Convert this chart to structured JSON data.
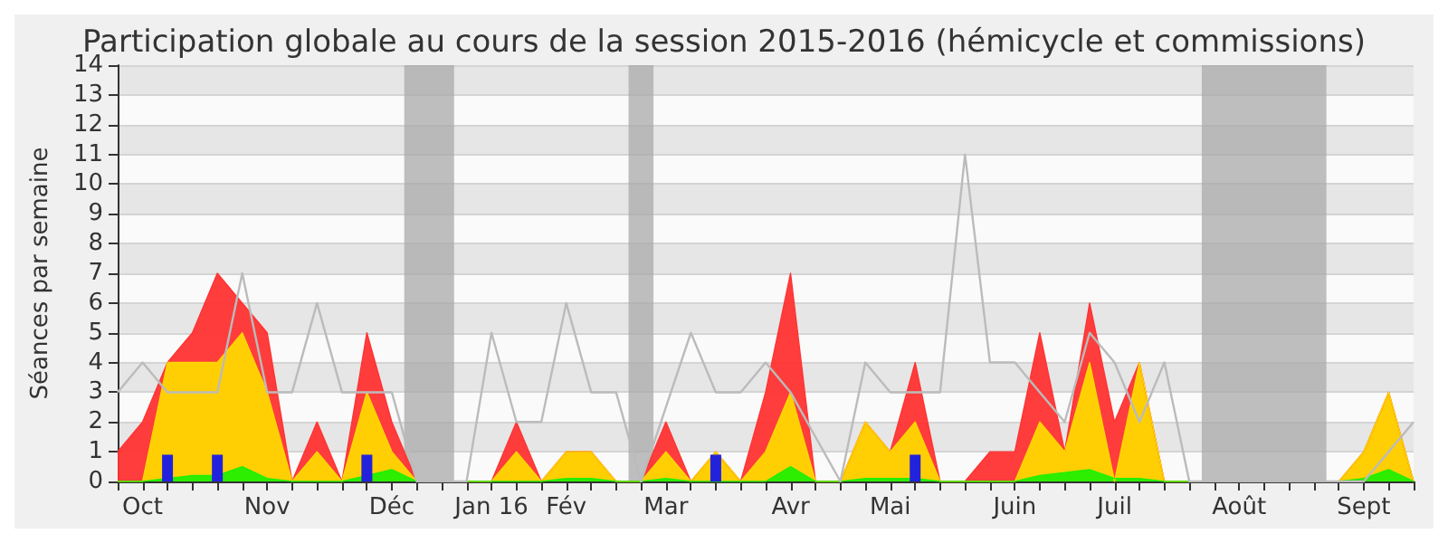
{
  "chart_data": {
    "type": "area",
    "title": "Participation globale au cours de la session 2015-2016 (hémicycle et commissions)",
    "ylabel": "Séances par semaine",
    "x": [
      "2015-10-05",
      "2015-10-12",
      "2015-10-19",
      "2015-10-26",
      "2015-11-02",
      "2015-11-09",
      "2015-11-16",
      "2015-11-23",
      "2015-11-30",
      "2015-12-07",
      "2015-12-14",
      "2015-12-21",
      "2015-12-28",
      "2016-01-04",
      "2016-01-11",
      "2016-01-18",
      "2016-01-25",
      "2016-02-01",
      "2016-02-08",
      "2016-02-15",
      "2016-02-22",
      "2016-02-29",
      "2016-03-07",
      "2016-03-14",
      "2016-03-21",
      "2016-03-28",
      "2016-04-04",
      "2016-04-11",
      "2016-04-18",
      "2016-04-25",
      "2016-05-02",
      "2016-05-09",
      "2016-05-16",
      "2016-05-23",
      "2016-05-30",
      "2016-06-06",
      "2016-06-13",
      "2016-06-20",
      "2016-06-27",
      "2016-07-04",
      "2016-07-11",
      "2016-07-18",
      "2016-07-25",
      "2016-08-01",
      "2016-08-08",
      "2016-08-15",
      "2016-08-22",
      "2016-08-29",
      "2016-09-05",
      "2016-09-12",
      "2016-09-19",
      "2016-09-26",
      "2016-10-03"
    ],
    "series": [
      {
        "color": "#ff3333",
        "values": [
          1,
          2,
          4,
          5,
          7,
          6,
          5,
          0,
          2,
          0,
          5,
          2,
          0,
          0,
          0,
          0,
          2,
          0,
          1,
          1,
          0,
          0,
          2,
          0,
          1,
          0,
          3,
          7,
          0,
          0,
          2,
          1,
          4,
          0,
          0,
          1,
          1,
          5,
          1,
          6,
          2,
          4,
          0,
          0,
          0,
          0,
          0,
          0,
          0,
          0,
          1,
          3,
          0
        ]
      },
      {
        "color": "#ffd700",
        "values": [
          0,
          0,
          4,
          4,
          4,
          5,
          3,
          0,
          1,
          0,
          3,
          1,
          0,
          0,
          0,
          0,
          1,
          0,
          1,
          1,
          0,
          0,
          1,
          0,
          1,
          0,
          1,
          3,
          0,
          0,
          2,
          1,
          2,
          0,
          0,
          0,
          0,
          2,
          1,
          4,
          0,
          4,
          0,
          0,
          0,
          0,
          0,
          0,
          0,
          0,
          1,
          3,
          0
        ]
      },
      {
        "color": "#22ee00",
        "values": [
          0,
          0,
          0.1,
          0.2,
          0.2,
          0.5,
          0.1,
          0,
          0,
          0,
          0.2,
          0.4,
          0,
          0,
          0,
          0,
          0,
          0,
          0.1,
          0.1,
          0,
          0,
          0.1,
          0,
          0,
          0,
          0,
          0.5,
          0,
          0,
          0.1,
          0.1,
          0.1,
          0,
          0,
          0,
          0,
          0.2,
          0.3,
          0.4,
          0.1,
          0.1,
          0,
          0,
          0,
          0,
          0,
          0,
          0,
          0,
          0.1,
          0.4,
          0
        ]
      },
      {
        "type": "bar",
        "color": "#2222dd",
        "values": [
          null,
          null,
          0.9,
          null,
          0.9,
          null,
          null,
          null,
          null,
          null,
          0.9,
          null,
          null,
          null,
          null,
          null,
          null,
          null,
          null,
          null,
          null,
          null,
          null,
          null,
          0.9,
          null,
          null,
          null,
          null,
          null,
          null,
          null,
          0.9,
          null,
          null,
          null,
          null,
          null,
          null,
          null,
          null,
          null,
          null,
          null,
          null,
          null,
          null,
          null,
          null,
          null,
          null,
          null,
          null
        ]
      },
      {
        "type": "line",
        "color": "#bbbbbb",
        "values": [
          3,
          4,
          3,
          3,
          3,
          7,
          3,
          3,
          6,
          3,
          3,
          3,
          0,
          0,
          0,
          5,
          2,
          2,
          6,
          3,
          3,
          0,
          2.5,
          5,
          3,
          3,
          4,
          3,
          1.5,
          0,
          4,
          3,
          3,
          3,
          11,
          4,
          4,
          3,
          2,
          5,
          4,
          2,
          4,
          0,
          0,
          0,
          0,
          0,
          0,
          0,
          0,
          1,
          2
        ]
      }
    ],
    "xlim": [
      "2015-10-05",
      "2016-10-03"
    ],
    "xticks": [
      {
        "value": "2015-10-05",
        "label": null
      },
      {
        "value": "2015-10-12",
        "label": "Oct"
      },
      {
        "value": "2015-10-19",
        "label": null
      },
      {
        "value": "2015-10-26",
        "label": null
      },
      {
        "value": "2015-11-02",
        "label": null
      },
      {
        "value": "2015-11-09",
        "label": null
      },
      {
        "value": "2015-11-16",
        "label": "Nov"
      },
      {
        "value": "2015-11-23",
        "label": null
      },
      {
        "value": "2015-11-30",
        "label": null
      },
      {
        "value": "2015-12-07",
        "label": null
      },
      {
        "value": "2015-12-14",
        "label": null
      },
      {
        "value": "2015-12-21",
        "label": "Déc"
      },
      {
        "value": "2015-12-28",
        "label": null
      },
      {
        "value": "2016-01-04",
        "label": null
      },
      {
        "value": "2016-01-11",
        "label": null
      },
      {
        "value": "2016-01-18",
        "label": "Jan 16"
      },
      {
        "value": "2016-01-25",
        "label": null
      },
      {
        "value": "2016-02-01",
        "label": null
      },
      {
        "value": "2016-02-08",
        "label": "Fév"
      },
      {
        "value": "2016-02-15",
        "label": null
      },
      {
        "value": "2016-02-22",
        "label": null
      },
      {
        "value": "2016-02-29",
        "label": null
      },
      {
        "value": "2016-03-07",
        "label": "Mar"
      },
      {
        "value": "2016-03-14",
        "label": null
      },
      {
        "value": "2016-03-21",
        "label": null
      },
      {
        "value": "2016-03-28",
        "label": null
      },
      {
        "value": "2016-04-04",
        "label": null
      },
      {
        "value": "2016-04-11",
        "label": "Avr"
      },
      {
        "value": "2016-04-18",
        "label": null
      },
      {
        "value": "2016-04-25",
        "label": null
      },
      {
        "value": "2016-05-02",
        "label": null
      },
      {
        "value": "2016-05-09",
        "label": "Mai"
      },
      {
        "value": "2016-05-16",
        "label": null
      },
      {
        "value": "2016-05-23",
        "label": null
      },
      {
        "value": "2016-05-30",
        "label": null
      },
      {
        "value": "2016-06-06",
        "label": null
      },
      {
        "value": "2016-06-13",
        "label": "Juin"
      },
      {
        "value": "2016-06-20",
        "label": null
      },
      {
        "value": "2016-06-27",
        "label": null
      },
      {
        "value": "2016-07-04",
        "label": null
      },
      {
        "value": "2016-07-11",
        "label": "Juil"
      },
      {
        "value": "2016-07-18",
        "label": null
      },
      {
        "value": "2016-07-25",
        "label": null
      },
      {
        "value": "2016-08-01",
        "label": null
      },
      {
        "value": "2016-08-08",
        "label": null
      },
      {
        "value": "2016-08-15",
        "label": "Août"
      },
      {
        "value": "2016-08-22",
        "label": null
      },
      {
        "value": "2016-08-29",
        "label": null
      },
      {
        "value": "2016-09-05",
        "label": null
      },
      {
        "value": "2016-09-12",
        "label": null
      },
      {
        "value": "2016-09-19",
        "label": "Sept"
      },
      {
        "value": "2016-09-26",
        "label": null
      },
      {
        "value": "2016-10-03",
        "label": null
      }
    ],
    "ylim": [
      0,
      14
    ],
    "yticks": [
      0,
      1,
      2,
      3,
      4,
      5,
      6,
      7,
      8,
      9,
      10,
      11,
      12,
      13,
      14
    ],
    "grid": "y",
    "marker": "none",
    "bands": [
      {
        "axis": "x",
        "from": "2015-12-24T12:00",
        "to": "2016-01-07T12:00",
        "color": "#aaaaaa"
      },
      {
        "axis": "x",
        "from": "2016-02-25T12:00",
        "to": "2016-03-03T12:00",
        "color": "#aaaaaa"
      },
      {
        "axis": "x",
        "from": "2016-08-04T12:00",
        "to": "2016-09-08T12:00",
        "color": "#aaaaaa"
      }
    ]
  }
}
